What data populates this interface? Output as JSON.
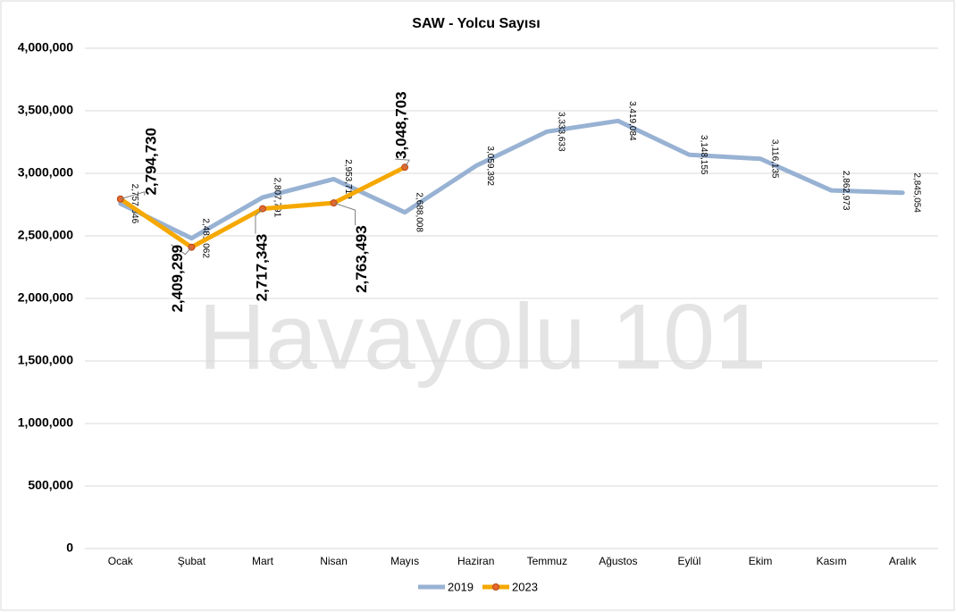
{
  "chart_data": {
    "type": "line",
    "title": "SAW - Yolcu Sayısı",
    "watermark": "Havayolu 101",
    "categories": [
      "Ocak",
      "Şubat",
      "Mart",
      "Nisan",
      "Mayıs",
      "Haziran",
      "Temmuz",
      "Ağustos",
      "Eylül",
      "Ekim",
      "Kasım",
      "Aralık"
    ],
    "series": [
      {
        "name": "2019",
        "color": "#98b2d3",
        "values": [
          2757846,
          2481062,
          2807791,
          2953719,
          2688008,
          3059392,
          3333633,
          3419084,
          3148155,
          3116135,
          2862973,
          2845054
        ],
        "value_labels": [
          "2,757,846",
          "2,481,062",
          "2,807,791",
          "2,953,719",
          "2,688,008",
          "3,059,392",
          "3,333,633",
          "3,419,084",
          "3,148,155",
          "3,116,135",
          "2,862,973",
          "2,845,054"
        ]
      },
      {
        "name": "2023",
        "color": "#f5a800",
        "values": [
          2794730,
          2409299,
          2717343,
          2763493,
          3048703,
          null,
          null,
          null,
          null,
          null,
          null,
          null
        ],
        "value_labels": [
          "2,794,730",
          "2,409,299",
          "2,717,343",
          "2,763,493",
          "3,048,703",
          null,
          null,
          null,
          null,
          null,
          null,
          null
        ]
      }
    ],
    "ylim": [
      0,
      4000000
    ],
    "yticks": [
      0,
      {
        "value": 500000,
        "label": "500,000"
      },
      {
        "value": 1000000,
        "label": "1,000,000"
      },
      {
        "value": 1500000,
        "label": "1,500,000"
      },
      {
        "value": 2000000,
        "label": "2,000,000"
      },
      {
        "value": 2500000,
        "label": "2,500,000"
      },
      {
        "value": 3000000,
        "label": "3,000,000"
      },
      {
        "value": 3500000,
        "label": "3,500,000"
      },
      {
        "value": 4000000,
        "label": "4,000,000"
      }
    ],
    "grid": true,
    "legend": "bottom"
  }
}
